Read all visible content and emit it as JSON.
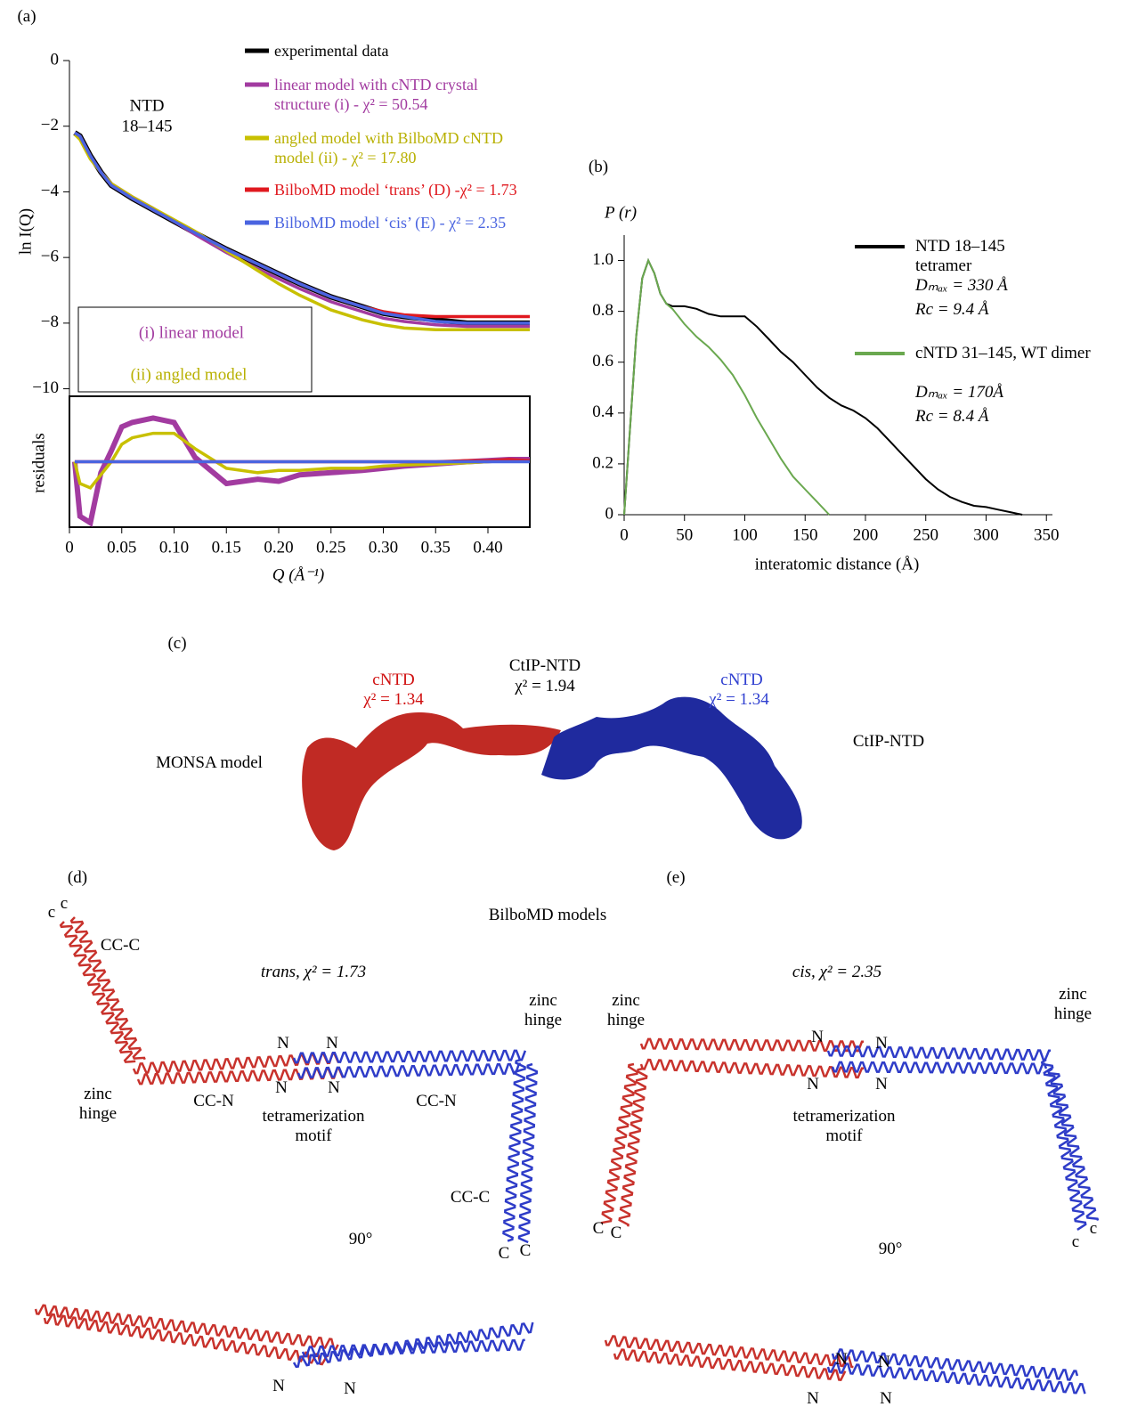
{
  "panel_labels": [
    "(a)",
    "(b)",
    "(c)",
    "(d)",
    "(e)"
  ],
  "chart_data": [
    {
      "type": "line",
      "ylabel": "ln I(Q)",
      "xlim": [
        0,
        0.44
      ],
      "ylim": [
        -10.5,
        0
      ],
      "yticks": [
        0,
        {
          "value": -2,
          "label": "−2"
        },
        {
          "value": -4,
          "label": "−4"
        },
        {
          "value": -6,
          "label": "−6"
        },
        {
          "value": -8,
          "label": "−8"
        },
        {
          "value": -10,
          "label": "−10"
        }
      ],
      "annotations": [
        {
          "text": "NTD",
          "color": "#000000"
        },
        {
          "text": "18–145",
          "color": "#000000"
        },
        {
          "text": "(i) linear model",
          "color": "#a23ba0"
        },
        {
          "text": "(ii) angled model",
          "color": "#b8b000"
        }
      ],
      "x": [
        0.005,
        0.01,
        0.02,
        0.03,
        0.04,
        0.05,
        0.06,
        0.08,
        0.1,
        0.12,
        0.15,
        0.18,
        0.2,
        0.22,
        0.25,
        0.28,
        0.3,
        0.32,
        0.35,
        0.38,
        0.4,
        0.42,
        0.44
      ],
      "series": [
        {
          "name": "experimental data",
          "color": "#000000",
          "values": [
            -2.2,
            -2.3,
            -2.9,
            -3.4,
            -3.8,
            -4.0,
            -4.2,
            -4.55,
            -4.9,
            -5.25,
            -5.75,
            -6.2,
            -6.5,
            -6.8,
            -7.2,
            -7.5,
            -7.7,
            -7.8,
            -7.9,
            -8.0,
            -8.0,
            -8.0,
            -8.0
          ]
        },
        {
          "name": "linear model with cNTD crystal structure (i) - χ² = 50.54",
          "color": "#a23ba0",
          "values": [
            -2.25,
            -2.35,
            -2.95,
            -3.4,
            -3.75,
            -3.95,
            -4.15,
            -4.5,
            -4.9,
            -5.3,
            -5.85,
            -6.35,
            -6.65,
            -6.95,
            -7.35,
            -7.65,
            -7.85,
            -7.95,
            -8.05,
            -8.1,
            -8.1,
            -8.1,
            -8.1
          ]
        },
        {
          "name": "angled model with BilboMD cNTD model (ii) - χ² = 17.80",
          "color": "#c8c000",
          "values": [
            -2.25,
            -2.4,
            -3.0,
            -3.4,
            -3.75,
            -3.95,
            -4.15,
            -4.5,
            -4.85,
            -5.2,
            -5.8,
            -6.4,
            -6.8,
            -7.15,
            -7.6,
            -7.9,
            -8.05,
            -8.15,
            -8.2,
            -8.2,
            -8.2,
            -8.2,
            -8.2
          ]
        },
        {
          "name": "BilboMD model ‘trans’ (D) -χ² = 1.73",
          "color": "#e0191f",
          "values": [
            -2.2,
            -2.3,
            -2.9,
            -3.4,
            -3.8,
            -4.0,
            -4.2,
            -4.55,
            -4.9,
            -5.25,
            -5.75,
            -6.2,
            -6.5,
            -6.8,
            -7.2,
            -7.5,
            -7.65,
            -7.75,
            -7.8,
            -7.8,
            -7.8,
            -7.8,
            -7.8
          ]
        },
        {
          "name": "BilboMD model ‘cis’ (E) - χ² = 2.35",
          "color": "#4a64e0",
          "values": [
            -2.2,
            -2.3,
            -2.9,
            -3.4,
            -3.8,
            -4.0,
            -4.2,
            -4.55,
            -4.9,
            -5.25,
            -5.75,
            -6.2,
            -6.5,
            -6.8,
            -7.2,
            -7.5,
            -7.7,
            -7.8,
            -7.95,
            -8.0,
            -8.0,
            -8.0,
            -8.0
          ]
        }
      ]
    },
    {
      "type": "line",
      "ylabel": "residuals",
      "xlabel": "Q (Å⁻¹)",
      "xlim": [
        0,
        0.44
      ],
      "ylim": [
        -3,
        3
      ],
      "xticks": [
        0,
        0.05,
        {
          "value": 0.1,
          "label": "0.10"
        },
        0.15,
        {
          "value": 0.2,
          "label": "0.20"
        },
        0.25,
        {
          "value": 0.3,
          "label": "0.30"
        },
        0.35,
        {
          "value": 0.4,
          "label": "0.40"
        }
      ],
      "x": [
        0.005,
        0.01,
        0.02,
        0.03,
        0.04,
        0.05,
        0.06,
        0.08,
        0.1,
        0.12,
        0.15,
        0.18,
        0.2,
        0.22,
        0.25,
        0.28,
        0.3,
        0.32,
        0.35,
        0.38,
        0.4,
        0.42,
        0.44
      ],
      "series": [
        {
          "color": "#a23ba0",
          "values": [
            0,
            -2.5,
            -2.8,
            -0.5,
            0.5,
            1.6,
            1.8,
            2.0,
            1.8,
            0.2,
            -1.0,
            -0.8,
            -0.9,
            -0.6,
            -0.5,
            -0.4,
            -0.3,
            -0.2,
            -0.1,
            0,
            0.05,
            0.1,
            0.1
          ]
        },
        {
          "color": "#c8c000",
          "values": [
            0,
            -1.0,
            -1.2,
            -0.6,
            0,
            0.8,
            1.1,
            1.3,
            1.3,
            0.6,
            -0.3,
            -0.5,
            -0.4,
            -0.4,
            -0.3,
            -0.3,
            -0.2,
            -0.15,
            -0.1,
            -0.05,
            0,
            0.05,
            0.05
          ]
        },
        {
          "color": "#e0191f",
          "values": [
            0,
            0,
            0,
            0,
            0,
            0,
            0,
            0,
            0,
            0,
            0,
            0,
            0,
            0,
            0,
            0,
            0,
            0,
            0,
            0.05,
            0.05,
            0.1,
            0.05
          ]
        },
        {
          "color": "#4a64e0",
          "values": [
            0,
            0,
            0,
            0,
            0,
            0,
            0,
            0,
            0,
            0,
            0,
            0,
            0,
            0,
            0,
            0,
            0,
            0,
            0,
            0,
            0,
            0,
            0
          ]
        }
      ]
    },
    {
      "type": "line",
      "ylabel": "P (r)",
      "xlabel": "interatomic distance (Å)",
      "xlim": [
        0,
        355
      ],
      "ylim": [
        0,
        1.1
      ],
      "xticks": [
        0,
        50,
        100,
        150,
        200,
        250,
        300,
        350
      ],
      "yticks": [
        0,
        0.2,
        0.4,
        0.6,
        0.8,
        {
          "value": 1,
          "label": "1.0"
        }
      ],
      "x": [
        0,
        5,
        10,
        15,
        20,
        25,
        30,
        35,
        40,
        50,
        60,
        70,
        80,
        90,
        100,
        110,
        120,
        130,
        140,
        150,
        160,
        170,
        180,
        190,
        200,
        210,
        220,
        230,
        240,
        250,
        260,
        270,
        280,
        290,
        300,
        310,
        320,
        330
      ],
      "series": [
        {
          "name": "NTD 18–145 tetramer",
          "details": [
            "Dₘₐₓ = 330 Å",
            "Rc = 9.4 Å"
          ],
          "color": "#000000",
          "values": [
            0,
            0.35,
            0.7,
            0.93,
            1.0,
            0.95,
            0.87,
            0.83,
            0.82,
            0.82,
            0.81,
            0.79,
            0.78,
            0.78,
            0.78,
            0.74,
            0.69,
            0.64,
            0.6,
            0.55,
            0.5,
            0.46,
            0.43,
            0.41,
            0.38,
            0.34,
            0.29,
            0.24,
            0.19,
            0.14,
            0.1,
            0.07,
            0.05,
            0.035,
            0.03,
            0.02,
            0.01,
            0
          ]
        },
        {
          "name": "cNTD 31–145, WT dimer",
          "details": [
            "Dₘₐₓ = 170Å",
            "Rc = 8.4 Å"
          ],
          "color": "#6aa84f",
          "values": [
            0,
            0.35,
            0.7,
            0.93,
            1.0,
            0.95,
            0.87,
            0.83,
            0.81,
            0.75,
            0.7,
            0.66,
            0.61,
            0.55,
            0.47,
            0.38,
            0.3,
            0.22,
            0.15,
            0.1,
            0.05,
            0,
            null,
            null,
            null,
            null,
            null,
            null,
            null,
            null,
            null,
            null,
            null,
            null,
            null,
            null,
            null,
            null
          ]
        }
      ]
    }
  ],
  "panel_c": {
    "left_label": "MONSA model",
    "right_label": "CtIP-NTD",
    "red_name": "cNTD",
    "red_chi": "χ² = 1.34",
    "center_name": "CtIP-NTD",
    "center_chi": "χ² = 1.94",
    "blue_name": "cNTD",
    "blue_chi": "χ² = 1.34"
  },
  "panel_de": {
    "title": "BilboMD models",
    "trans_title": "trans, χ² = 1.73",
    "cis_title": "cis, χ² = 2.35",
    "trans_labels": [
      "c",
      "c",
      "CC-C",
      "zinc hinge",
      "N",
      "N",
      "N",
      "N",
      "CC-N",
      "CC-N",
      "tetramerization motif",
      "zinc hinge",
      "CC-C",
      "C",
      "C",
      "90°",
      "N",
      "N"
    ],
    "cis_labels": [
      "zinc hinge",
      "N",
      "N",
      "N",
      "N",
      "tetramerization motif",
      "zinc hinge",
      "C",
      "C",
      "c",
      "c",
      "90°",
      "N",
      "N",
      "N",
      "N"
    ]
  }
}
